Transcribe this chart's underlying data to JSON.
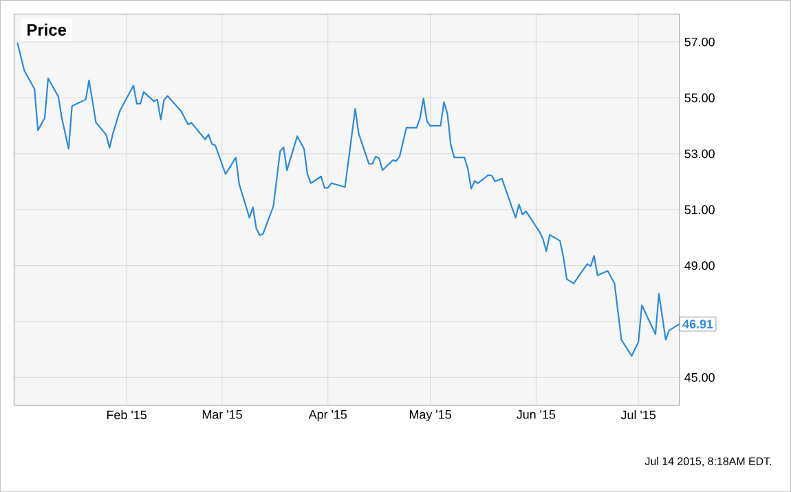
{
  "chart_data": {
    "type": "line",
    "title": "Price",
    "xlim": [
      "2014-12-30",
      "2015-07-13"
    ],
    "xticks": [
      {
        "value": "2015-02-01",
        "label": "Feb '15"
      },
      {
        "value": "2015-03-01",
        "label": "Mar '15"
      },
      {
        "value": "2015-04-01",
        "label": "Apr '15"
      },
      {
        "value": "2015-05-01",
        "label": "May '15"
      },
      {
        "value": "2015-06-01",
        "label": "Jun '15"
      },
      {
        "value": "2015-07-01",
        "label": "Jul '15"
      }
    ],
    "ylim": [
      44,
      58
    ],
    "yticks": [
      {
        "value": 45,
        "label": "45.00"
      },
      {
        "value": 47,
        "label": null
      },
      {
        "value": 49,
        "label": "49.00"
      },
      {
        "value": 51,
        "label": "51.00"
      },
      {
        "value": 53,
        "label": "53.00"
      },
      {
        "value": 55,
        "label": "55.00"
      },
      {
        "value": 57,
        "label": "57.00"
      }
    ],
    "grid": true,
    "marker": "none",
    "line_style": "solid",
    "x": [
      "2014-12-31",
      "2015-01-02",
      "2015-01-05",
      "2015-01-06",
      "2015-01-08",
      "2015-01-09",
      "2015-01-12",
      "2015-01-13",
      "2015-01-15",
      "2015-01-16",
      "2015-01-20",
      "2015-01-21",
      "2015-01-23",
      "2015-01-26",
      "2015-01-27",
      "2015-01-28",
      "2015-01-30",
      "2015-02-03",
      "2015-02-04",
      "2015-02-05",
      "2015-02-06",
      "2015-02-09",
      "2015-02-10",
      "2015-02-11",
      "2015-02-12",
      "2015-02-13",
      "2015-02-17",
      "2015-02-19",
      "2015-02-20",
      "2015-02-24",
      "2015-02-25",
      "2015-02-26",
      "2015-02-27",
      "2015-03-02",
      "2015-03-05",
      "2015-03-06",
      "2015-03-09",
      "2015-03-10",
      "2015-03-11",
      "2015-03-12",
      "2015-03-13",
      "2015-03-16",
      "2015-03-17",
      "2015-03-18",
      "2015-03-19",
      "2015-03-20",
      "2015-03-23",
      "2015-03-25",
      "2015-03-26",
      "2015-03-27",
      "2015-03-30",
      "2015-03-31",
      "2015-04-01",
      "2015-04-02",
      "2015-04-06",
      "2015-04-09",
      "2015-04-10",
      "2015-04-13",
      "2015-04-14",
      "2015-04-15",
      "2015-04-16",
      "2015-04-17",
      "2015-04-20",
      "2015-04-21",
      "2015-04-22",
      "2015-04-24",
      "2015-04-27",
      "2015-04-28",
      "2015-04-29",
      "2015-04-30",
      "2015-05-01",
      "2015-05-04",
      "2015-05-05",
      "2015-05-06",
      "2015-05-07",
      "2015-05-08",
      "2015-05-11",
      "2015-05-12",
      "2015-05-13",
      "2015-05-14",
      "2015-05-15",
      "2015-05-18",
      "2015-05-19",
      "2015-05-20",
      "2015-05-22",
      "2015-05-26",
      "2015-05-27",
      "2015-05-28",
      "2015-05-29",
      "2015-06-02",
      "2015-06-03",
      "2015-06-04",
      "2015-06-05",
      "2015-06-08",
      "2015-06-09",
      "2015-06-10",
      "2015-06-12",
      "2015-06-16",
      "2015-06-17",
      "2015-06-18",
      "2015-06-19",
      "2015-06-22",
      "2015-06-24",
      "2015-06-26",
      "2015-06-29",
      "2015-07-01",
      "2015-07-02",
      "2015-07-06",
      "2015-07-07",
      "2015-07-09",
      "2015-07-10",
      "2015-07-13"
    ],
    "series": [
      {
        "color": "#2a8ae0",
        "values": [
          56.97,
          55.98,
          55.32,
          53.84,
          54.28,
          55.7,
          55.04,
          54.28,
          53.18,
          54.71,
          54.94,
          55.63,
          54.12,
          53.68,
          53.21,
          53.73,
          54.53,
          55.44,
          54.79,
          54.79,
          55.21,
          54.88,
          54.94,
          54.22,
          54.94,
          55.07,
          54.52,
          54.05,
          54.11,
          53.51,
          53.69,
          53.35,
          53.3,
          52.27,
          52.87,
          51.91,
          50.71,
          51.09,
          50.33,
          50.09,
          50.14,
          51.12,
          52.11,
          53.1,
          53.23,
          52.41,
          53.63,
          53.18,
          52.27,
          51.95,
          52.19,
          51.78,
          51.78,
          51.95,
          51.81,
          54.61,
          53.73,
          52.64,
          52.64,
          52.9,
          52.84,
          52.41,
          52.77,
          52.74,
          52.9,
          53.93,
          53.93,
          54.28,
          54.98,
          54.17,
          54.0,
          54.0,
          54.85,
          54.45,
          53.33,
          52.87,
          52.87,
          52.47,
          51.75,
          52.03,
          51.95,
          52.24,
          52.22,
          52.01,
          52.11,
          50.71,
          51.19,
          50.83,
          50.95,
          50.21,
          49.96,
          49.51,
          50.1,
          49.89,
          49.31,
          48.52,
          48.36,
          49.06,
          48.98,
          49.35,
          48.65,
          48.81,
          48.36,
          46.35,
          45.77,
          46.27,
          47.58,
          46.55,
          48.0,
          46.35,
          46.68,
          46.91
        ]
      }
    ],
    "annotations": [
      {
        "text": "46.91",
        "x": "2015-07-13",
        "y": 46.91
      },
      "Jul 14 2015, 8:18AM EDT."
    ]
  }
}
